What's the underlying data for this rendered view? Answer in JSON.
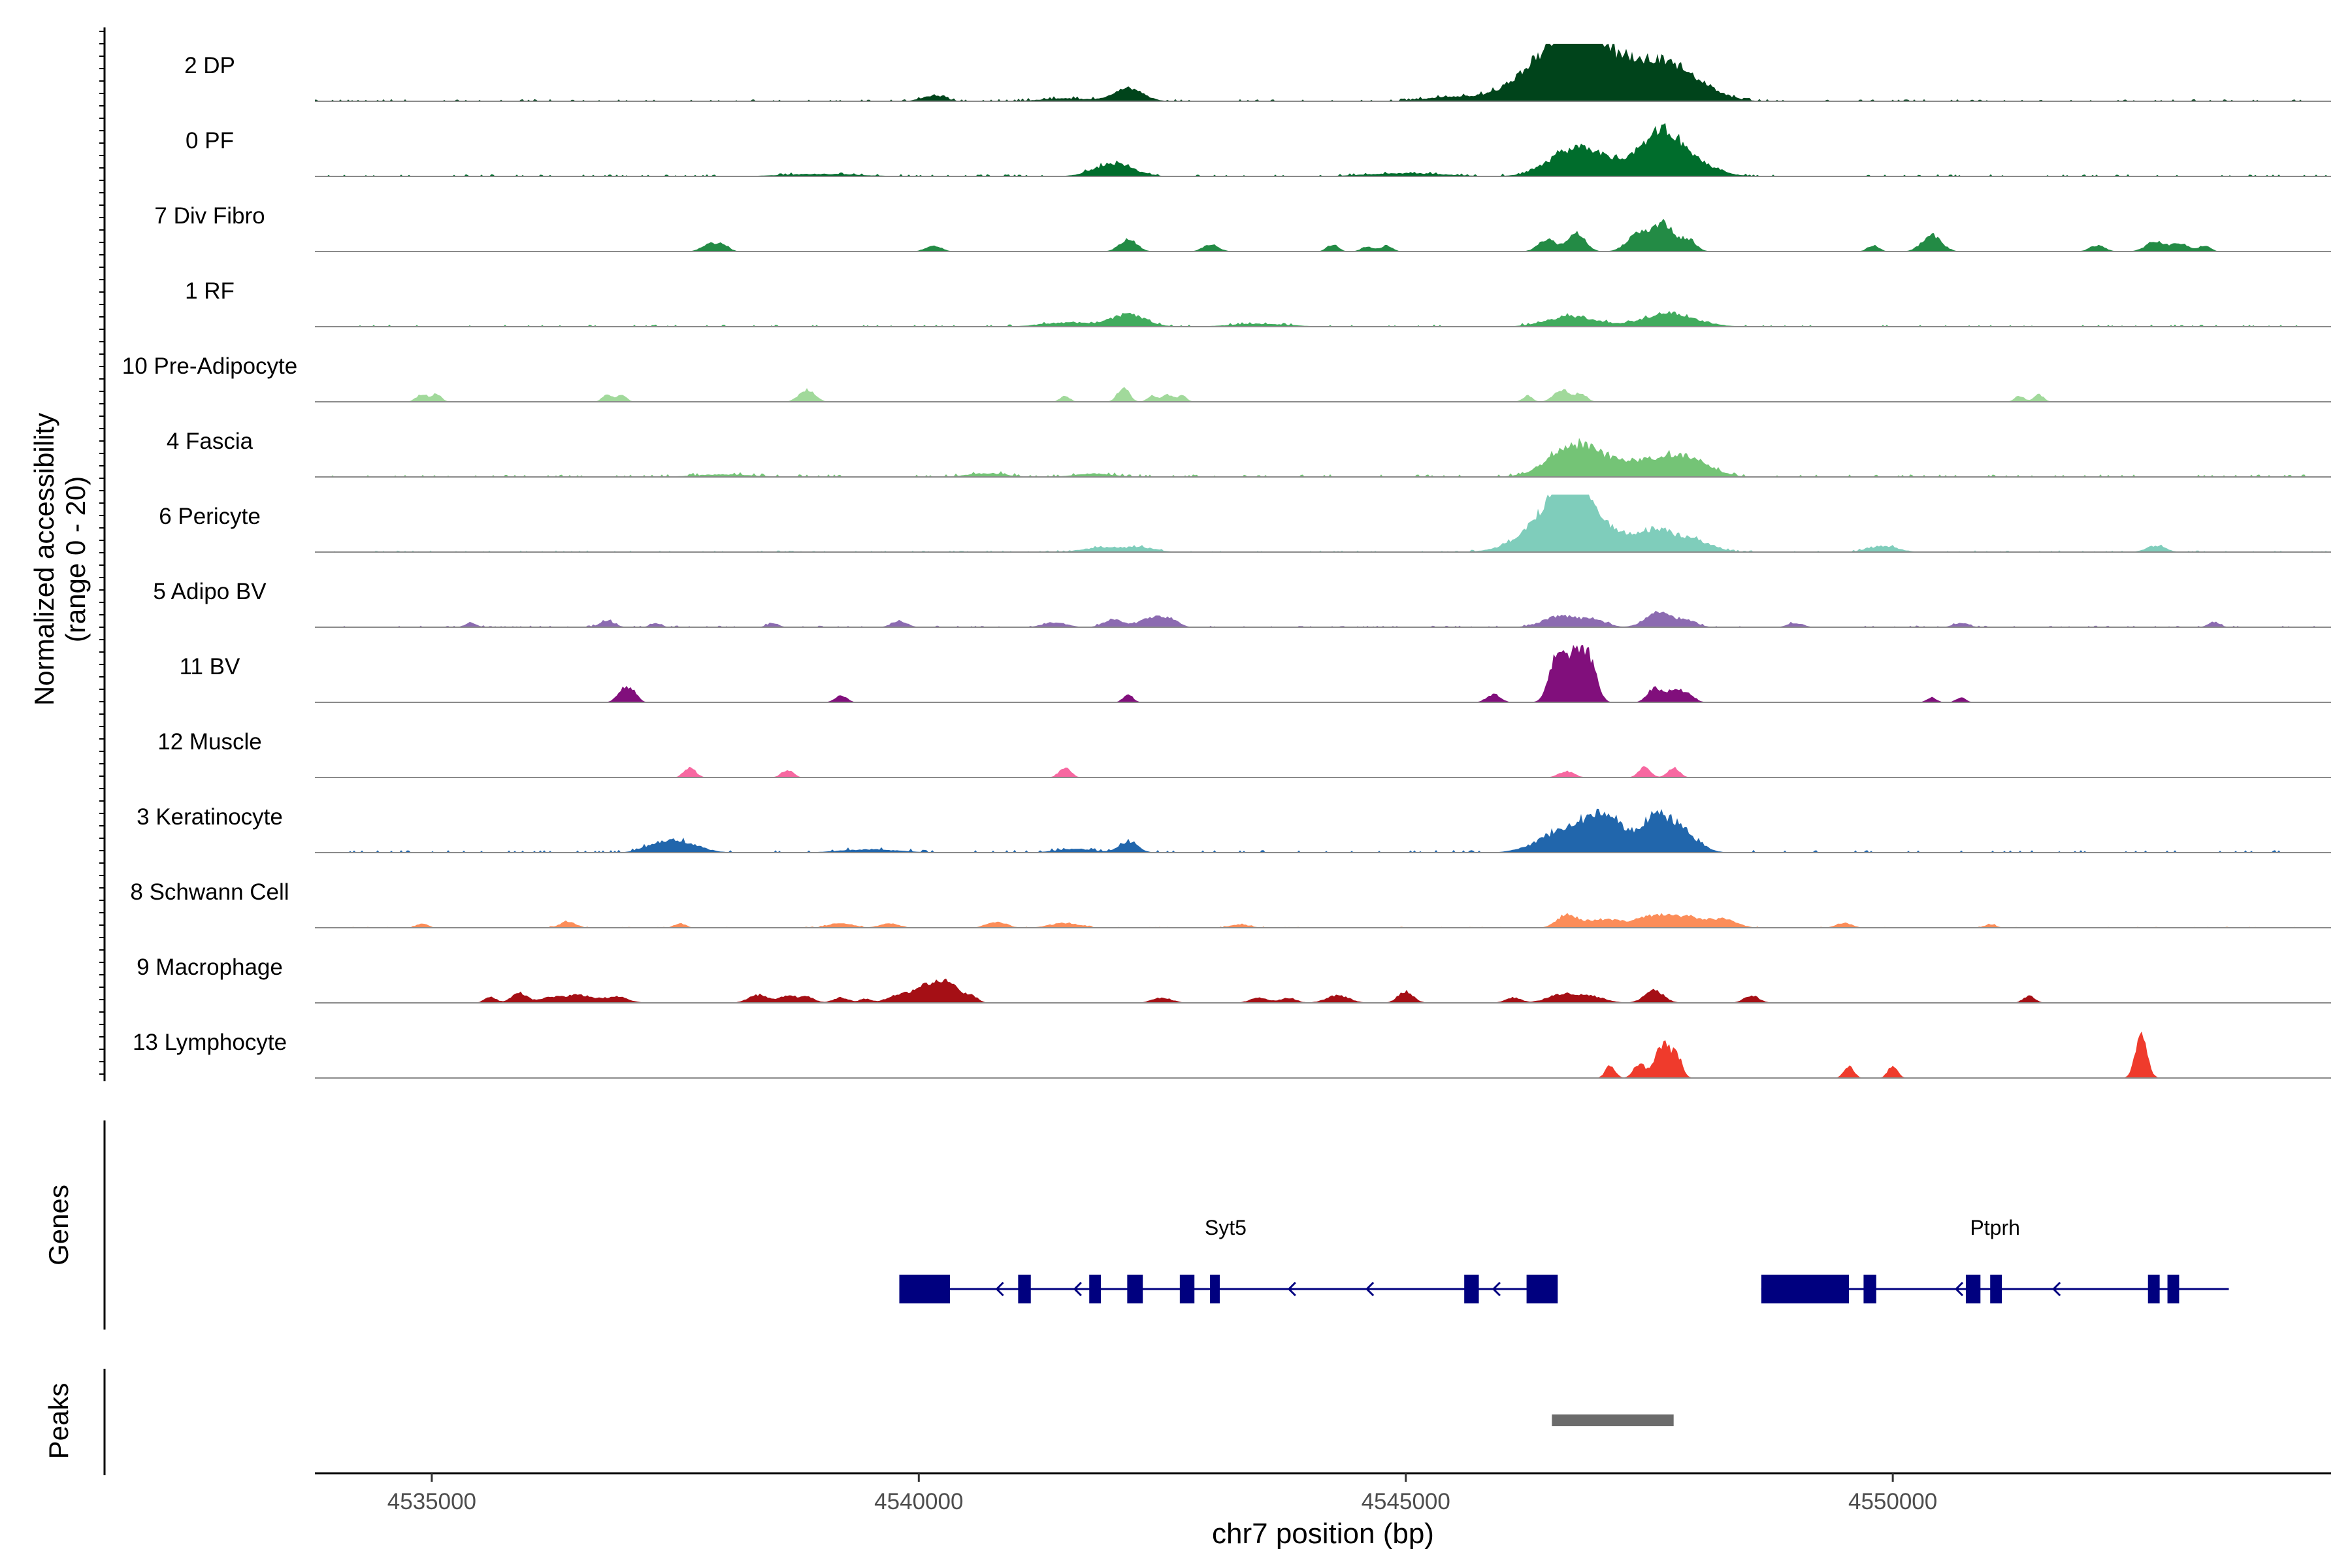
{
  "chart_data": {
    "type": "area",
    "title": "",
    "xlabel": "chr7 position (bp)",
    "ylabel": "Normalized accessibility\n(range 0 - 20)",
    "xlim": [
      4533800,
      4554500
    ],
    "ylim": [
      0,
      20
    ],
    "x_ticks": [
      {
        "value": 4535000,
        "label": "4535000"
      },
      {
        "value": 4540000,
        "label": "4540000"
      },
      {
        "value": 4545000,
        "label": "4545000"
      },
      {
        "value": 4550000,
        "label": "4550000"
      }
    ],
    "grid": false,
    "legend": "none",
    "tracks": [
      {
        "name": "2 DP",
        "color": "#00441b",
        "background": "0.4",
        "peaks": [
          [
            4542150,
            3.2,
            150
          ],
          [
            4546700,
            12.0,
            300
          ],
          [
            4546400,
            5.0,
            380
          ],
          [
            4547000,
            6.0,
            250
          ],
          [
            4547350,
            4.5,
            180
          ],
          [
            4547650,
            6.5,
            220
          ],
          [
            4547950,
            4.0,
            250
          ],
          [
            4540150,
            1.3,
            120
          ],
          [
            4541500,
            0.7,
            250
          ],
          [
            4545400,
            0.9,
            250
          ]
        ]
      },
      {
        "name": "0 PF",
        "color": "#006d2c",
        "background": "0.4",
        "peaks": [
          [
            4542000,
            3.2,
            200
          ],
          [
            4546700,
            5.5,
            250
          ],
          [
            4547000,
            3.0,
            250
          ],
          [
            4547600,
            9.5,
            200
          ],
          [
            4547900,
            3.5,
            250
          ],
          [
            4545000,
            0.8,
            400
          ],
          [
            4539000,
            0.6,
            400
          ]
        ]
      },
      {
        "name": "7 Div Fibro",
        "color": "#238b45",
        "background": "0.0",
        "peaks": [
          [
            4537850,
            2.0,
            80
          ],
          [
            4538000,
            1.5,
            60
          ],
          [
            4540150,
            1.5,
            80
          ],
          [
            4542150,
            3.0,
            90
          ],
          [
            4543000,
            1.8,
            80
          ],
          [
            4544250,
            1.7,
            60
          ],
          [
            4544600,
            1.2,
            60
          ],
          [
            4544800,
            1.5,
            60
          ],
          [
            4546450,
            3.0,
            90
          ],
          [
            4546750,
            4.5,
            90
          ],
          [
            4547400,
            4.5,
            120
          ],
          [
            4547650,
            6.5,
            100
          ],
          [
            4547900,
            3.0,
            80
          ],
          [
            4549800,
            1.5,
            60
          ],
          [
            4550400,
            4.0,
            100
          ],
          [
            4552100,
            1.5,
            80
          ],
          [
            4552700,
            2.5,
            100
          ],
          [
            4552950,
            2.0,
            80
          ],
          [
            4553200,
            1.5,
            60
          ]
        ]
      },
      {
        "name": "1 RF",
        "color": "#41ab5d",
        "background": "0.4",
        "peaks": [
          [
            4542150,
            3.0,
            180
          ],
          [
            4546700,
            2.5,
            250
          ],
          [
            4547700,
            3.0,
            280
          ],
          [
            4541500,
            1.0,
            250
          ],
          [
            4543500,
            0.7,
            300
          ]
        ]
      },
      {
        "name": "10 Pre-Adipocyte",
        "color": "#a1d99b",
        "background": "0.0",
        "peaks": [
          [
            4534900,
            1.8,
            60
          ],
          [
            4535050,
            1.8,
            50
          ],
          [
            4536800,
            1.8,
            50
          ],
          [
            4536950,
            1.8,
            50
          ],
          [
            4538850,
            3.0,
            80
          ],
          [
            4541500,
            1.5,
            50
          ],
          [
            4542100,
            3.5,
            60
          ],
          [
            4542400,
            1.5,
            50
          ],
          [
            4542550,
            1.8,
            50
          ],
          [
            4542700,
            1.5,
            50
          ],
          [
            4546250,
            1.5,
            50
          ],
          [
            4546600,
            3.0,
            80
          ],
          [
            4546800,
            2.0,
            60
          ],
          [
            4551300,
            1.5,
            50
          ],
          [
            4551500,
            1.8,
            50
          ]
        ]
      },
      {
        "name": "4 Fascia",
        "color": "#74c476",
        "background": "0.5",
        "peaks": [
          [
            4546700,
            6.5,
            250
          ],
          [
            4547000,
            2.5,
            250
          ],
          [
            4547650,
            4.5,
            300
          ],
          [
            4547950,
            2.0,
            200
          ],
          [
            4541800,
            0.8,
            200
          ],
          [
            4540700,
            0.9,
            200
          ],
          [
            4538000,
            0.6,
            300
          ]
        ]
      },
      {
        "name": "6 Pericyte",
        "color": "#7fcdbb",
        "background": "0.3",
        "peaks": [
          [
            4546700,
            13.5,
            200
          ],
          [
            4546500,
            7.0,
            300
          ],
          [
            4547150,
            4.0,
            200
          ],
          [
            4547550,
            4.5,
            150
          ],
          [
            4547900,
            3.5,
            200
          ],
          [
            4541900,
            1.2,
            200
          ],
          [
            4542300,
            1.0,
            150
          ],
          [
            4549900,
            1.5,
            150
          ],
          [
            4552700,
            1.5,
            100
          ]
        ]
      },
      {
        "name": "5 Adipo BV",
        "color": "#8c6bb1",
        "background": "0.3",
        "peaks": [
          [
            4535400,
            1.0,
            60
          ],
          [
            4536800,
            1.5,
            80
          ],
          [
            4537300,
            0.9,
            60
          ],
          [
            4538500,
            1.0,
            60
          ],
          [
            4539800,
            1.5,
            80
          ],
          [
            4541400,
            1.2,
            120
          ],
          [
            4542000,
            2.0,
            100
          ],
          [
            4542400,
            2.5,
            120
          ],
          [
            4542600,
            1.5,
            80
          ],
          [
            4546600,
            2.8,
            180
          ],
          [
            4546950,
            1.5,
            120
          ],
          [
            4547600,
            4.0,
            130
          ],
          [
            4547900,
            1.5,
            100
          ],
          [
            4549000,
            1.0,
            80
          ],
          [
            4550700,
            1.0,
            80
          ],
          [
            4553300,
            1.3,
            60
          ]
        ]
      },
      {
        "name": "11 BV",
        "color": "#810f7c",
        "background": "0.0",
        "peaks": [
          [
            4536950,
            2.5,
            60
          ],
          [
            4537050,
            2.8,
            60
          ],
          [
            4539200,
            1.8,
            60
          ],
          [
            4542150,
            2.0,
            50
          ],
          [
            4545900,
            2.0,
            70
          ],
          [
            4546550,
            11.0,
            80
          ],
          [
            4546750,
            12.0,
            90
          ],
          [
            4546900,
            8.0,
            70
          ],
          [
            4547550,
            3.5,
            70
          ],
          [
            4547750,
            3.0,
            80
          ],
          [
            4547900,
            1.8,
            70
          ],
          [
            4550400,
            1.2,
            50
          ],
          [
            4550700,
            1.2,
            50
          ]
        ]
      },
      {
        "name": "12 Muscle",
        "color": "#f768a1",
        "background": "0.0",
        "peaks": [
          [
            4537650,
            2.5,
            60
          ],
          [
            4538650,
            1.8,
            60
          ],
          [
            4541500,
            2.5,
            60
          ],
          [
            4546650,
            1.5,
            80
          ],
          [
            4547450,
            2.5,
            60
          ],
          [
            4547750,
            2.5,
            60
          ]
        ]
      },
      {
        "name": "3 Keratinocyte",
        "color": "#2166ac",
        "background": "0.5",
        "peaks": [
          [
            4537550,
            2.5,
            200
          ],
          [
            4537300,
            1.2,
            150
          ],
          [
            4542150,
            2.5,
            100
          ],
          [
            4546600,
            4.5,
            250
          ],
          [
            4546900,
            5.0,
            200
          ],
          [
            4547100,
            6.0,
            120
          ],
          [
            4547550,
            8.5,
            180
          ],
          [
            4547850,
            4.0,
            160
          ],
          [
            4539500,
            0.8,
            300
          ],
          [
            4541600,
            0.9,
            200
          ]
        ]
      },
      {
        "name": "8 Schwann Cell",
        "color": "#fc8d59",
        "background": "0.2",
        "peaks": [
          [
            4534900,
            1.0,
            60
          ],
          [
            4536400,
            1.5,
            80
          ],
          [
            4537550,
            1.0,
            60
          ],
          [
            4539200,
            1.2,
            120
          ],
          [
            4539700,
            1.0,
            100
          ],
          [
            4540800,
            1.5,
            100
          ],
          [
            4541500,
            1.2,
            150
          ],
          [
            4543300,
            0.8,
            100
          ],
          [
            4546650,
            3.0,
            100
          ],
          [
            4547000,
            2.0,
            180
          ],
          [
            4547550,
            2.8,
            200
          ],
          [
            4547950,
            2.2,
            200
          ],
          [
            4548300,
            1.5,
            120
          ],
          [
            4549500,
            1.2,
            80
          ],
          [
            4551000,
            0.8,
            60
          ]
        ]
      },
      {
        "name": "9 Macrophage",
        "color": "#a50f15",
        "background": "0.0",
        "peaks": [
          [
            4535600,
            1.5,
            60
          ],
          [
            4535900,
            2.5,
            80
          ],
          [
            4536200,
            1.2,
            100
          ],
          [
            4536500,
            2.0,
            150
          ],
          [
            4536900,
            1.5,
            120
          ],
          [
            4538350,
            2.0,
            100
          ],
          [
            4538650,
            1.8,
            80
          ],
          [
            4538850,
            1.5,
            80
          ],
          [
            4539200,
            1.3,
            80
          ],
          [
            4539450,
            1.0,
            60
          ],
          [
            4539800,
            2.0,
            120
          ],
          [
            4540150,
            5.0,
            150
          ],
          [
            4540350,
            2.5,
            100
          ],
          [
            4540550,
            1.5,
            60
          ],
          [
            4542500,
            1.3,
            100
          ],
          [
            4543500,
            1.2,
            100
          ],
          [
            4543800,
            1.2,
            80
          ],
          [
            4544300,
            1.8,
            120
          ],
          [
            4545000,
            2.8,
            80
          ],
          [
            4546100,
            1.3,
            80
          ],
          [
            4546600,
            2.0,
            150
          ],
          [
            4546900,
            1.5,
            150
          ],
          [
            4547550,
            3.0,
            100
          ],
          [
            4548550,
            1.8,
            80
          ],
          [
            4551400,
            1.8,
            60
          ]
        ]
      },
      {
        "name": "13 Lymphocyte",
        "color": "#ef3b2c",
        "background": "0.0",
        "peaks": [
          [
            4547100,
            3.0,
            50
          ],
          [
            4547400,
            3.5,
            60
          ],
          [
            4547600,
            6.0,
            60
          ],
          [
            4547700,
            5.5,
            60
          ],
          [
            4547800,
            4.0,
            50
          ],
          [
            4549550,
            3.0,
            50
          ],
          [
            4550000,
            3.0,
            50
          ],
          [
            4552550,
            10.0,
            60
          ]
        ]
      }
    ],
    "genes": [
      {
        "name": "Syt5",
        "start": 4539800,
        "end": 4546500,
        "strand": "-",
        "exons": [
          [
            4539800,
            4540320
          ],
          [
            4541020,
            4541150
          ],
          [
            4541750,
            4541870
          ],
          [
            4542140,
            4542300
          ],
          [
            4542680,
            4542830
          ],
          [
            4542990,
            4543090
          ],
          [
            4545600,
            4545750
          ],
          [
            4546240,
            4546560
          ]
        ],
        "arrows": [
          4540800,
          4541600,
          4543800,
          4544600,
          4545900
        ]
      },
      {
        "name": "Ptprh",
        "start": 4548650,
        "end": 4553450,
        "strand": "-",
        "exons": [
          [
            4548650,
            4549550
          ],
          [
            4549700,
            4549830
          ],
          [
            4550750,
            4550900
          ],
          [
            4551000,
            4551120
          ],
          [
            4552620,
            4552740
          ],
          [
            4552820,
            4552940
          ]
        ],
        "arrows": [
          4550650,
          4551650
        ]
      }
    ],
    "peaks_track": [
      {
        "start": 4546500,
        "end": 4547750
      }
    ],
    "panel_labels": {
      "genes": "Genes",
      "peaks": "Peaks"
    }
  }
}
